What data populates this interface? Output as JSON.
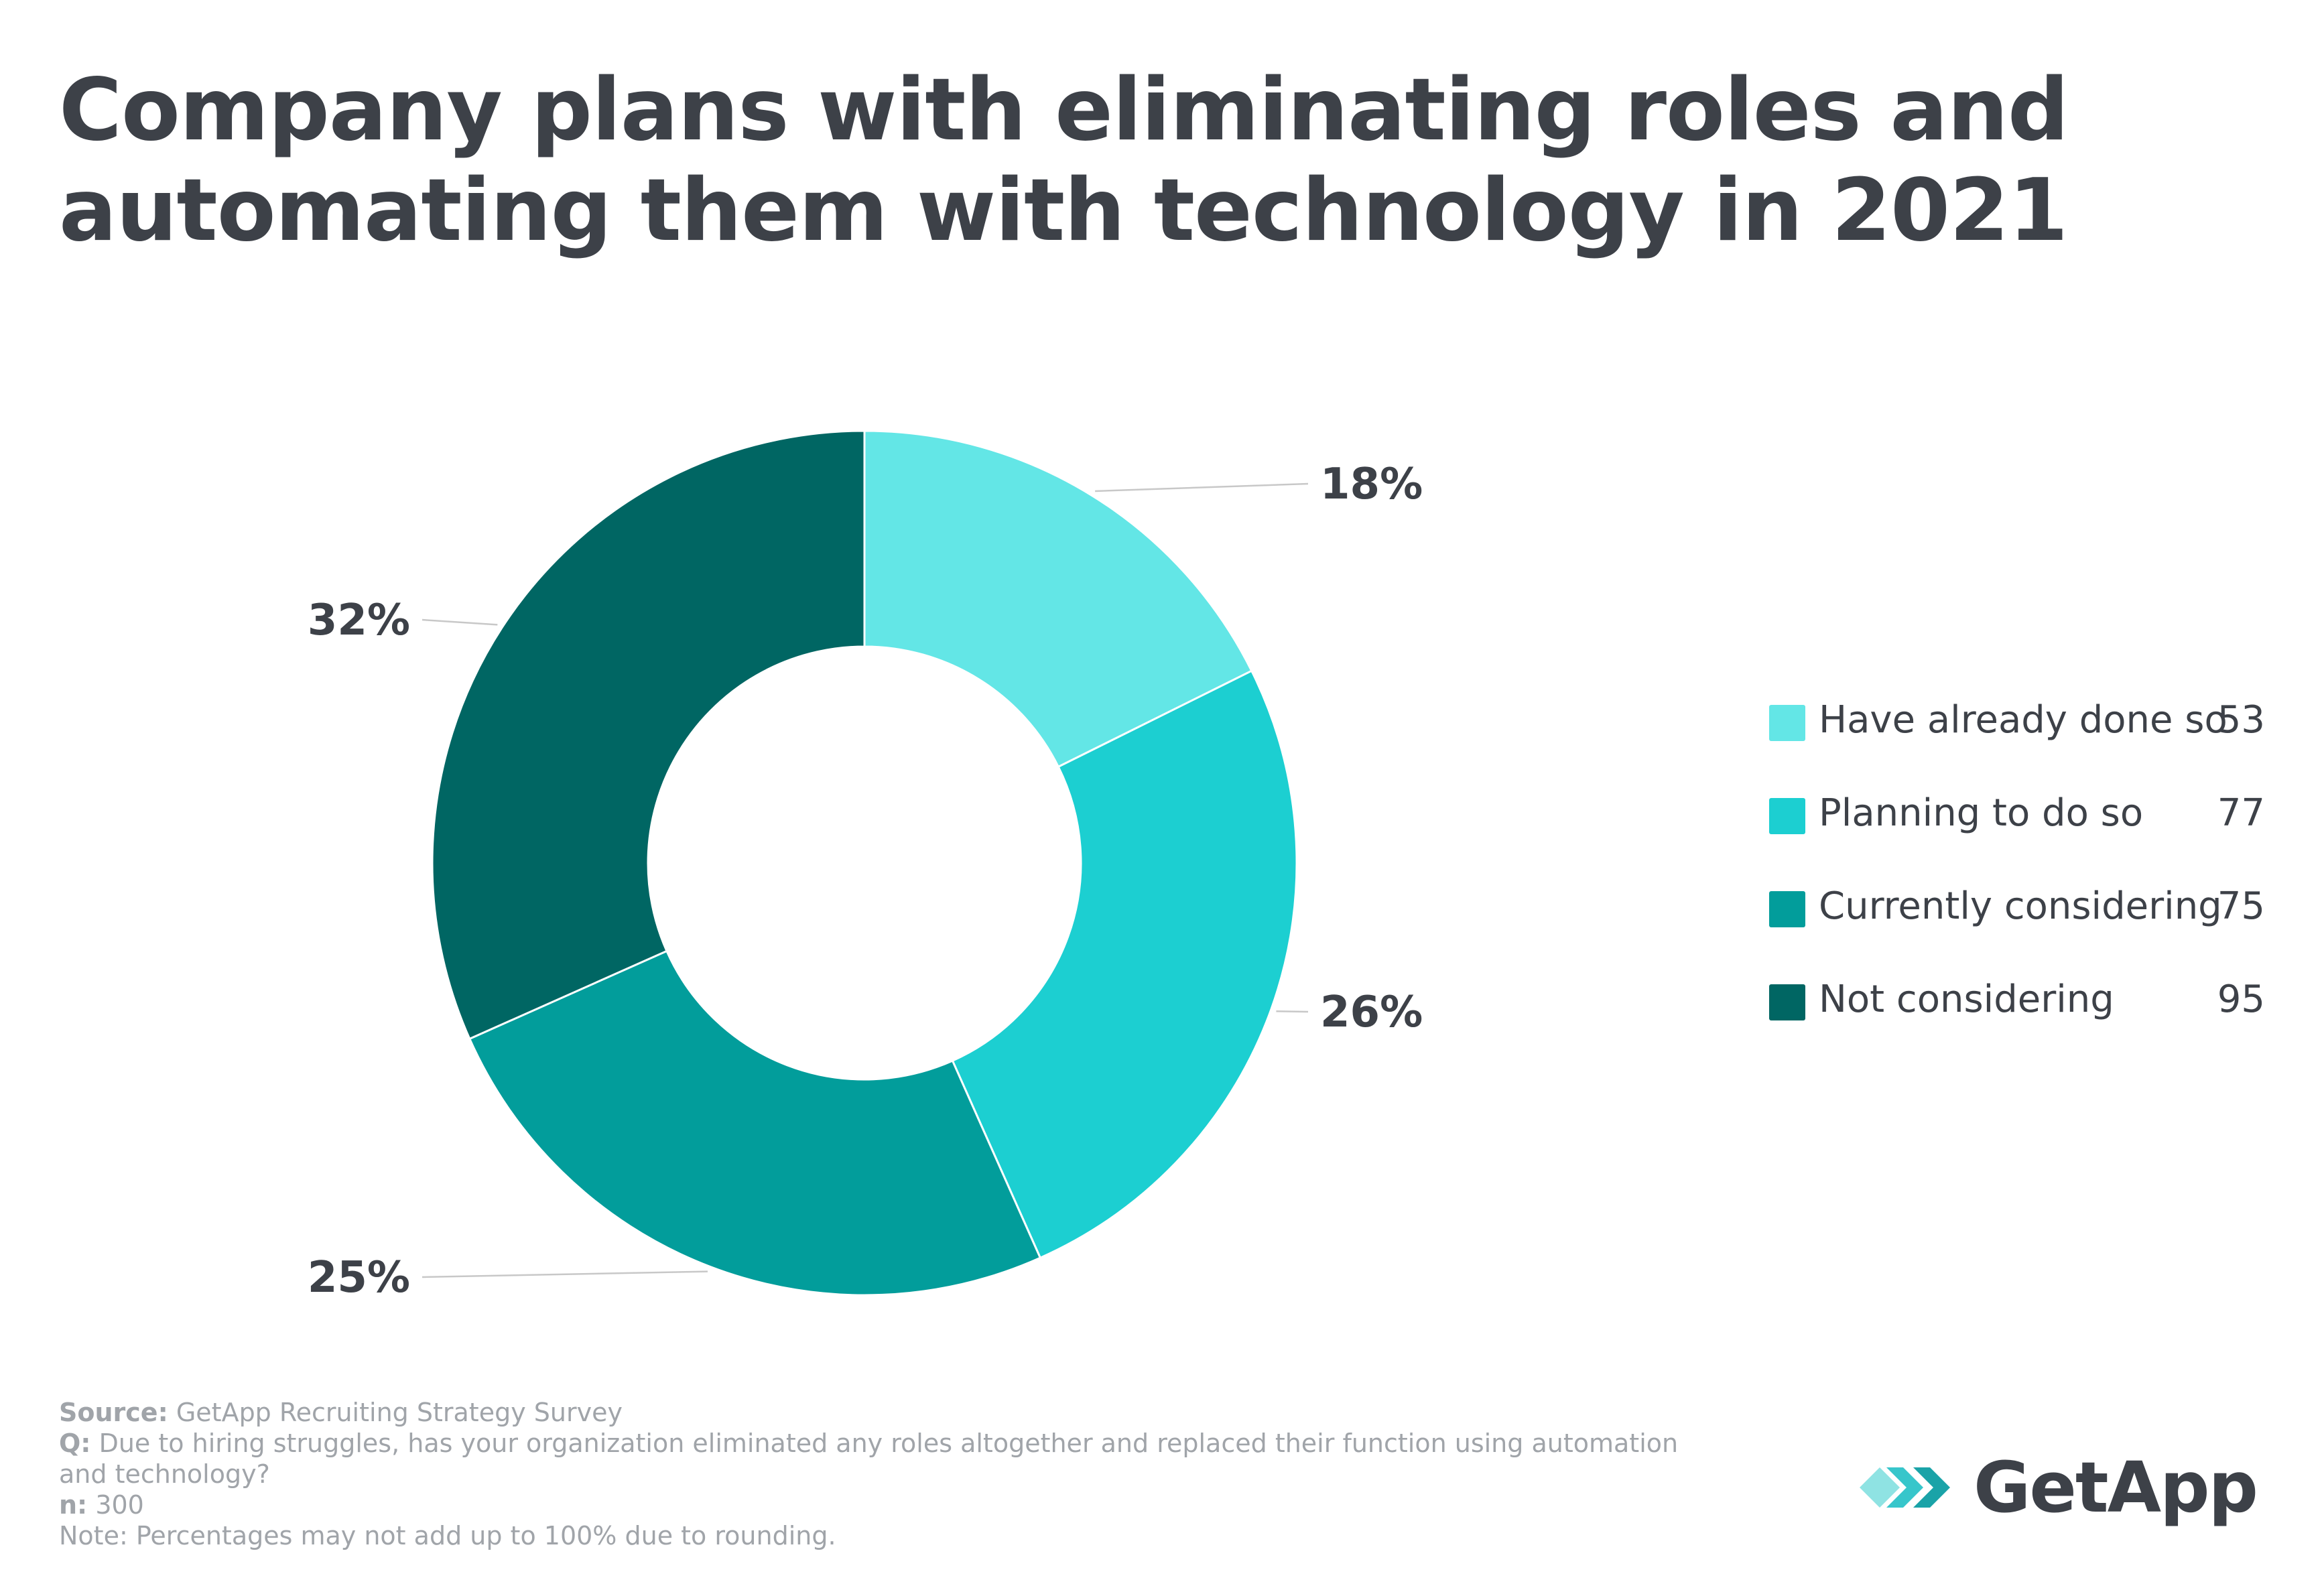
{
  "title": {
    "line1": "Company plans with eliminating roles and",
    "line2": "automating them with technology in 2021"
  },
  "chart_data": {
    "type": "pie",
    "style": "donut",
    "title": "Company plans with eliminating roles and automating them with technology in 2021",
    "categories": [
      "Have already done so",
      "Planning to do so",
      "Currently considering",
      "Not considering"
    ],
    "values": [
      53,
      77,
      75,
      95
    ],
    "percent_labels": [
      "18%",
      "26%",
      "25%",
      "32%"
    ],
    "colors": [
      "#63e6e6",
      "#1ccfd1",
      "#029d9b",
      "#006663"
    ],
    "legend_position": "right"
  },
  "legend": [
    {
      "label": "Have already done so",
      "value": "53"
    },
    {
      "label": "Planning to do so",
      "value": "77"
    },
    {
      "label": "Currently considering",
      "value": "75"
    },
    {
      "label": "Not considering",
      "value": "95"
    }
  ],
  "footer": {
    "source_key": "Source:",
    "source_val": " GetApp Recruiting Strategy Survey",
    "q_key": "Q:",
    "q_val": " Due to hiring struggles, has your organization eliminated any roles altogether and replaced their function using automation and technology?",
    "n_key": "n:",
    "n_val": " 300",
    "note": "Note: Percentages may not add up to 100% due to rounding."
  },
  "logo": {
    "text": "GetApp",
    "colors": [
      "#8fe3e3",
      "#37c6cb",
      "#1aa3a8"
    ]
  }
}
